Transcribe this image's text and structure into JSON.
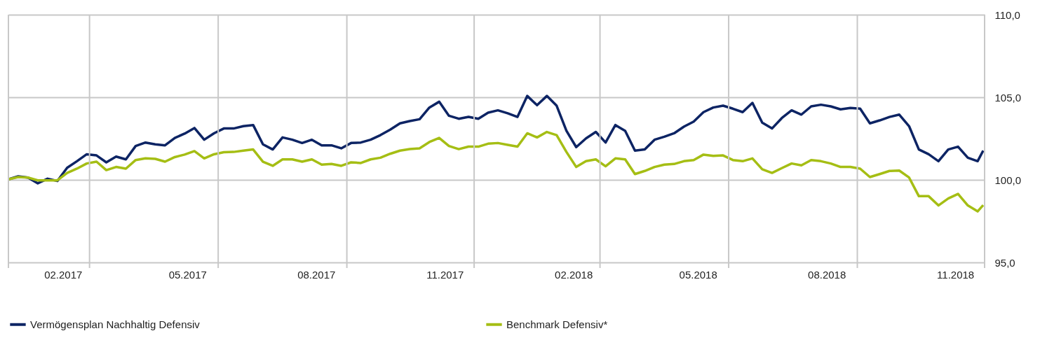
{
  "chart_data": {
    "type": "line",
    "x": [
      "2017-01-02",
      "2017-01-09",
      "2017-01-16",
      "2017-01-23",
      "2017-01-30",
      "2017-02-06",
      "2017-02-13",
      "2017-02-20",
      "2017-02-27",
      "2017-03-06",
      "2017-03-13",
      "2017-03-20",
      "2017-03-27",
      "2017-04-03",
      "2017-04-10",
      "2017-04-17",
      "2017-04-24",
      "2017-05-01",
      "2017-05-08",
      "2017-05-15",
      "2017-05-22",
      "2017-05-29",
      "2017-06-05",
      "2017-06-12",
      "2017-06-19",
      "2017-06-26",
      "2017-07-03",
      "2017-07-10",
      "2017-07-17",
      "2017-07-24",
      "2017-07-31",
      "2017-08-07",
      "2017-08-14",
      "2017-08-21",
      "2017-08-28",
      "2017-09-04",
      "2017-09-11",
      "2017-09-18",
      "2017-09-25",
      "2017-10-02",
      "2017-10-09",
      "2017-10-16",
      "2017-10-23",
      "2017-10-30",
      "2017-11-06",
      "2017-11-13",
      "2017-11-20",
      "2017-11-27",
      "2017-12-04",
      "2017-12-11",
      "2017-12-18",
      "2017-12-25",
      "2018-01-01",
      "2018-01-08",
      "2018-01-15",
      "2018-01-22",
      "2018-01-29",
      "2018-02-05",
      "2018-02-12",
      "2018-02-19",
      "2018-02-26",
      "2018-03-05",
      "2018-03-12",
      "2018-03-19",
      "2018-03-26",
      "2018-04-02",
      "2018-04-09",
      "2018-04-16",
      "2018-04-23",
      "2018-04-30",
      "2018-05-07",
      "2018-05-14",
      "2018-05-21",
      "2018-05-28",
      "2018-06-04",
      "2018-06-11",
      "2018-06-18",
      "2018-06-25",
      "2018-07-02",
      "2018-07-09",
      "2018-07-16",
      "2018-07-23",
      "2018-07-30",
      "2018-08-06",
      "2018-08-13",
      "2018-08-20",
      "2018-08-27",
      "2018-09-03",
      "2018-09-10",
      "2018-09-17",
      "2018-09-24",
      "2018-10-01",
      "2018-10-08",
      "2018-10-15",
      "2018-10-22",
      "2018-10-29",
      "2018-11-05",
      "2018-11-12",
      "2018-11-19",
      "2018-11-26",
      "2018-11-30"
    ],
    "series": [
      {
        "name": "Vermögensplan Nachhaltig Defensiv",
        "color": "#0d2464",
        "values": [
          100.03,
          100.21,
          100.14,
          99.79,
          100.07,
          99.93,
          100.73,
          101.13,
          101.55,
          101.48,
          101.06,
          101.41,
          101.24,
          102.05,
          102.26,
          102.15,
          102.09,
          102.54,
          102.8,
          103.14,
          102.43,
          102.82,
          103.11,
          103.11,
          103.25,
          103.32,
          102.15,
          101.84,
          102.57,
          102.43,
          102.23,
          102.43,
          102.09,
          102.09,
          101.91,
          102.23,
          102.26,
          102.43,
          102.71,
          103.04,
          103.42,
          103.56,
          103.67,
          104.38,
          104.73,
          103.88,
          103.7,
          103.81,
          103.7,
          104.07,
          104.21,
          104.03,
          103.81,
          105.08,
          104.52,
          105.08,
          104.49,
          102.97,
          101.98,
          102.51,
          102.9,
          102.26,
          103.32,
          102.97,
          101.77,
          101.84,
          102.43,
          102.61,
          102.82,
          103.22,
          103.53,
          104.1,
          104.38,
          104.49,
          104.31,
          104.1,
          104.66,
          103.46,
          103.11,
          103.74,
          104.21,
          103.95,
          104.45,
          104.55,
          104.45,
          104.27,
          104.35,
          104.31,
          103.42,
          103.6,
          103.81,
          103.95,
          103.25,
          101.84,
          101.55,
          101.13,
          101.84,
          102.01,
          101.34,
          101.13,
          101.77
        ]
      },
      {
        "name": "Benchmark Defensiv*",
        "color": "#a5be14",
        "values": [
          100.03,
          100.17,
          100.14,
          99.97,
          99.97,
          99.97,
          100.42,
          100.68,
          100.99,
          101.1,
          100.59,
          100.78,
          100.68,
          101.2,
          101.3,
          101.27,
          101.1,
          101.38,
          101.53,
          101.74,
          101.3,
          101.55,
          101.67,
          101.69,
          101.77,
          101.84,
          101.1,
          100.85,
          101.24,
          101.24,
          101.1,
          101.24,
          100.92,
          100.96,
          100.85,
          101.06,
          101.02,
          101.24,
          101.34,
          101.58,
          101.77,
          101.86,
          101.91,
          102.29,
          102.54,
          102.05,
          101.86,
          102.01,
          102.01,
          102.19,
          102.23,
          102.12,
          102.01,
          102.82,
          102.57,
          102.9,
          102.71,
          101.69,
          100.78,
          101.13,
          101.24,
          100.82,
          101.3,
          101.24,
          100.35,
          100.54,
          100.78,
          100.92,
          100.96,
          101.13,
          101.2,
          101.53,
          101.45,
          101.48,
          101.2,
          101.13,
          101.3,
          100.64,
          100.42,
          100.71,
          100.99,
          100.88,
          101.2,
          101.13,
          100.99,
          100.78,
          100.78,
          100.68,
          100.17,
          100.35,
          100.54,
          100.56,
          100.14,
          99.01,
          99.01,
          98.45,
          98.87,
          99.15,
          98.45,
          98.09,
          98.47
        ]
      }
    ],
    "xlim": [
      "2017-01-02",
      "2018-12-01"
    ],
    "xticks": [
      {
        "value": "2017-01-02",
        "label": null
      },
      {
        "value": "2017-02-10",
        "label": "02.2017"
      },
      {
        "value": "2017-03-01",
        "label": null
      },
      {
        "value": "2017-05-10",
        "label": "05.2017"
      },
      {
        "value": "2017-06-01",
        "label": null
      },
      {
        "value": "2017-08-10",
        "label": "08.2017"
      },
      {
        "value": "2017-09-01",
        "label": null
      },
      {
        "value": "2017-11-10",
        "label": "11.2017"
      },
      {
        "value": "2017-12-01",
        "label": null
      },
      {
        "value": "2018-02-10",
        "label": "02.2018"
      },
      {
        "value": "2018-03-01",
        "label": null
      },
      {
        "value": "2018-05-10",
        "label": "05.2018"
      },
      {
        "value": "2018-06-01",
        "label": null
      },
      {
        "value": "2018-08-10",
        "label": "08.2018"
      },
      {
        "value": "2018-09-01",
        "label": null
      },
      {
        "value": "2018-11-10",
        "label": "11.2018"
      },
      {
        "value": "2018-12-01",
        "label": null
      }
    ],
    "ylim": [
      95,
      110
    ],
    "yticks": [
      {
        "value": 95,
        "label": "95,0"
      },
      {
        "value": 100,
        "label": "100,0"
      },
      {
        "value": 105,
        "label": "105,0"
      },
      {
        "value": 110,
        "label": "110,0"
      }
    ],
    "grid": true,
    "legend": "bottom",
    "marker": "none",
    "line_style": "solid"
  }
}
